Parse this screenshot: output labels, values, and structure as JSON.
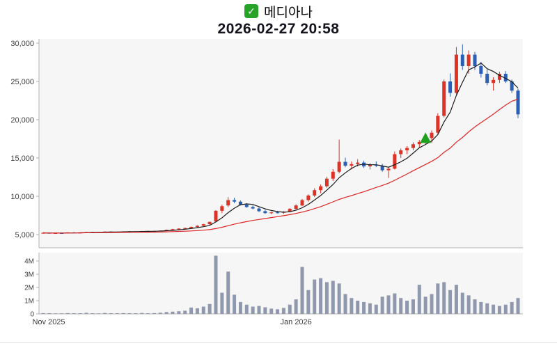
{
  "header": {
    "title": "메디아나",
    "datetime": "2026-02-27 20:58",
    "checkbox_glyph": "✓"
  },
  "colors": {
    "up": "#dd3327",
    "down": "#2a5fb4",
    "ma_short": "#1a1a1a",
    "ma_long": "#e02424",
    "volume": "#8f98ac",
    "marker": "#1ea21e",
    "plot_bg": "#f6f6f6",
    "axis": "#b0b0b0",
    "tick_text": "#3c3c3c",
    "check_bg": "#27a427"
  },
  "chart_data": {
    "type": "candlestick+volume",
    "title": "메디아나",
    "subtitle": "2026-02-27 20:58",
    "legend": "none",
    "grid": "off",
    "price_axis": {
      "ticks": [
        5000,
        10000,
        15000,
        20000,
        25000,
        30000
      ],
      "min": 3500,
      "max": 30500
    },
    "volume_axis": {
      "tick_labels": [
        "0",
        "1M",
        "2M",
        "3M",
        "4M"
      ],
      "unit": "millions",
      "max": 4.6
    },
    "x_axis": {
      "labels": [
        {
          "text": "Nov 2025",
          "index": 0
        },
        {
          "text": "Jan 2026",
          "index": 41
        }
      ]
    },
    "moving_averages": [
      {
        "name": "short",
        "window": 5,
        "color_key": "ma_short"
      },
      {
        "name": "long",
        "window": 20,
        "color_key": "ma_long"
      }
    ],
    "marker": {
      "type": "up-triangle",
      "index": 62,
      "price": 17600,
      "color_key": "marker"
    },
    "candles_format": [
      "open",
      "high",
      "low",
      "close",
      "volume_millions"
    ],
    "candles": [
      [
        5200,
        5280,
        5150,
        5230,
        0.06
      ],
      [
        5230,
        5260,
        5120,
        5150,
        0.05
      ],
      [
        5150,
        5220,
        5100,
        5200,
        0.04
      ],
      [
        5200,
        5250,
        5150,
        5180,
        0.04
      ],
      [
        5180,
        5300,
        5170,
        5280,
        0.06
      ],
      [
        5280,
        5320,
        5200,
        5240,
        0.05
      ],
      [
        5240,
        5290,
        5180,
        5260,
        0.05
      ],
      [
        5260,
        5350,
        5230,
        5330,
        0.08
      ],
      [
        5330,
        5360,
        5250,
        5290,
        0.05
      ],
      [
        5290,
        5340,
        5240,
        5310,
        0.04
      ],
      [
        5310,
        5400,
        5280,
        5380,
        0.07
      ],
      [
        5380,
        5420,
        5300,
        5340,
        0.05
      ],
      [
        5340,
        5390,
        5290,
        5360,
        0.05
      ],
      [
        5360,
        5430,
        5320,
        5400,
        0.06
      ],
      [
        5400,
        5450,
        5340,
        5380,
        0.05
      ],
      [
        5380,
        5440,
        5350,
        5420,
        0.05
      ],
      [
        5420,
        5480,
        5380,
        5450,
        0.07
      ],
      [
        5450,
        5500,
        5400,
        5430,
        0.05
      ],
      [
        5430,
        5490,
        5390,
        5470,
        0.06
      ],
      [
        5470,
        5550,
        5430,
        5520,
        0.09
      ],
      [
        5520,
        5650,
        5480,
        5620,
        0.14
      ],
      [
        5620,
        5750,
        5580,
        5700,
        0.17
      ],
      [
        5700,
        5820,
        5650,
        5780,
        0.2
      ],
      [
        5780,
        5900,
        5720,
        5850,
        0.24
      ],
      [
        5850,
        6050,
        5800,
        6000,
        0.48
      ],
      [
        6000,
        6200,
        5950,
        6150,
        0.42
      ],
      [
        6150,
        6400,
        6100,
        6350,
        0.55
      ],
      [
        6350,
        6700,
        6300,
        6650,
        0.75
      ],
      [
        6700,
        8200,
        6650,
        8100,
        4.4
      ],
      [
        8100,
        8900,
        7800,
        8700,
        1.6
      ],
      [
        8800,
        9900,
        8600,
        9500,
        3.2
      ],
      [
        9500,
        9800,
        9100,
        9300,
        1.45
      ],
      [
        9300,
        9450,
        8800,
        8900,
        0.9
      ],
      [
        8900,
        9100,
        8500,
        8600,
        0.7
      ],
      [
        8600,
        8800,
        8300,
        8400,
        0.55
      ],
      [
        8400,
        8550,
        7950,
        8050,
        0.6
      ],
      [
        8050,
        8250,
        7700,
        7800,
        0.5
      ],
      [
        7800,
        8000,
        7650,
        7900,
        0.4
      ],
      [
        7900,
        8100,
        7750,
        7850,
        0.35
      ],
      [
        7850,
        8050,
        7700,
        8000,
        0.45
      ],
      [
        8000,
        8450,
        7950,
        8350,
        0.7
      ],
      [
        8350,
        8950,
        8300,
        8800,
        1.1
      ],
      [
        8800,
        9650,
        8700,
        9500,
        3.55
      ],
      [
        9500,
        10250,
        9300,
        10100,
        1.8
      ],
      [
        10100,
        11050,
        9900,
        10800,
        2.6
      ],
      [
        10800,
        11550,
        10400,
        11300,
        2.7
      ],
      [
        11300,
        12550,
        11100,
        12300,
        2.4
      ],
      [
        12300,
        13550,
        12000,
        13200,
        2.5
      ],
      [
        13200,
        17400,
        13000,
        14500,
        2.3
      ],
      [
        14500,
        15050,
        13800,
        14000,
        1.5
      ],
      [
        14000,
        14550,
        13500,
        14200,
        1.2
      ],
      [
        14200,
        14850,
        13900,
        14400,
        1.0
      ],
      [
        14400,
        14650,
        13700,
        13900,
        0.9
      ],
      [
        13900,
        14350,
        13500,
        14100,
        0.8
      ],
      [
        14100,
        14550,
        13800,
        14000,
        0.7
      ],
      [
        14000,
        14250,
        13200,
        13400,
        1.3
      ],
      [
        13400,
        13850,
        12400,
        13600,
        1.4
      ],
      [
        13600,
        15850,
        13500,
        15500,
        1.55
      ],
      [
        15500,
        16250,
        15000,
        16000,
        1.2
      ],
      [
        16000,
        16550,
        15500,
        16300,
        1.0
      ],
      [
        16300,
        17050,
        16000,
        16800,
        1.1
      ],
      [
        16800,
        17350,
        16400,
        17100,
        2.2
      ],
      [
        17100,
        17850,
        16800,
        17600,
        1.3
      ],
      [
        17600,
        18600,
        17000,
        18300,
        1.5
      ],
      [
        18300,
        20850,
        18100,
        20500,
        2.3
      ],
      [
        20500,
        25250,
        20300,
        25000,
        2.4
      ],
      [
        25000,
        26050,
        23000,
        23500,
        1.8
      ],
      [
        23500,
        29500,
        23300,
        28500,
        2.2
      ],
      [
        28500,
        29850,
        26500,
        27000,
        1.6
      ],
      [
        27000,
        29050,
        26000,
        28500,
        1.4
      ],
      [
        28500,
        28850,
        26500,
        27000,
        1.1
      ],
      [
        27000,
        27550,
        25500,
        26000,
        0.9
      ],
      [
        26000,
        26550,
        24500,
        24800,
        0.8
      ],
      [
        24800,
        25550,
        23800,
        25200,
        0.7
      ],
      [
        25200,
        26250,
        24800,
        26000,
        0.6
      ],
      [
        26000,
        26350,
        24800,
        25000,
        0.7
      ],
      [
        25000,
        25250,
        23500,
        23800,
        0.9
      ],
      [
        23800,
        24050,
        20200,
        20700,
        1.2
      ]
    ]
  }
}
